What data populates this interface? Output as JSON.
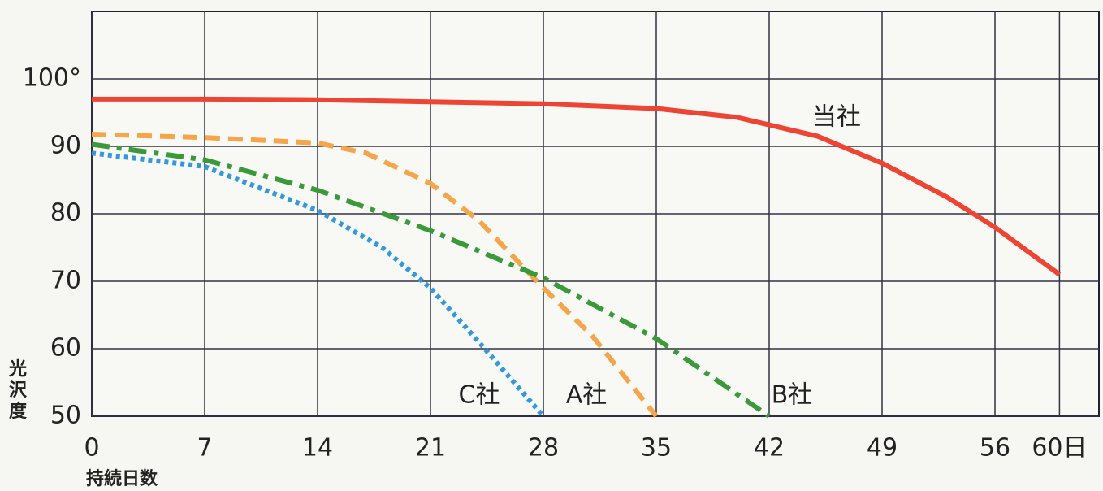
{
  "chart_data": {
    "type": "line",
    "x_label": "持続日数",
    "y_label": "光沢度",
    "xlim": [
      0,
      63
    ],
    "ylim": [
      50,
      110
    ],
    "xticks": [
      0,
      7,
      14,
      21,
      28,
      35,
      42,
      49,
      56,
      {
        "value": 60,
        "label": "60日"
      }
    ],
    "yticks": [
      50,
      60,
      70,
      80,
      90,
      {
        "value": 100,
        "label": "100°"
      }
    ],
    "grid": true,
    "series": [
      {
        "name": "当社",
        "color": "#ee4433",
        "dash": "solid",
        "x": [
          0,
          7,
          14,
          21,
          28,
          35,
          40,
          45,
          49,
          53,
          56,
          60
        ],
        "values": [
          97,
          97,
          96.9,
          96.6,
          96.3,
          95.6,
          94.3,
          91.5,
          87.5,
          82.5,
          78,
          71
        ]
      },
      {
        "name": "A社",
        "color": "#f5a54a",
        "dash": "dash",
        "x": [
          0,
          7,
          14,
          17,
          21,
          24,
          28,
          31,
          35
        ],
        "values": [
          91.8,
          91.3,
          90.5,
          89,
          84.5,
          79,
          69,
          62,
          50
        ]
      },
      {
        "name": "B社",
        "color": "#3a9a3a",
        "dash": "dashdot",
        "x": [
          0,
          7,
          14,
          21,
          28,
          35,
          42
        ],
        "values": [
          90.3,
          88,
          83.5,
          77.5,
          70.5,
          61.5,
          50
        ]
      },
      {
        "name": "C社",
        "color": "#3399dd",
        "dash": "dot",
        "x": [
          0,
          7,
          14,
          18,
          21,
          24,
          28
        ],
        "values": [
          89,
          87,
          80.5,
          75,
          69,
          61,
          50
        ]
      }
    ]
  }
}
